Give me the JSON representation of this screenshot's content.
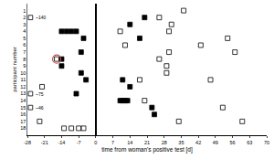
{
  "chart_data": {
    "type": "scatter",
    "x_label": "time from woman's positive test [d]",
    "y_label": "participant number",
    "xlim": [
      -28,
      70
    ],
    "xticks": [
      -28,
      -21,
      -14,
      -7,
      0,
      7,
      14,
      21,
      28,
      35,
      42,
      49,
      56,
      63,
      70
    ],
    "ylim": [
      19,
      0
    ],
    "yticks": [
      1,
      2,
      3,
      4,
      5,
      6,
      7,
      8,
      9,
      10,
      11,
      12,
      13,
      14,
      15,
      16,
      17,
      18
    ],
    "grid": false,
    "series": [
      {
        "marker": "square",
        "color": "#000000",
        "x": [
          20,
          14,
          -14,
          -12,
          -10,
          -8,
          -5,
          18,
          -6,
          -14,
          -14,
          -6,
          -4,
          11,
          14,
          -8,
          10,
          11,
          12,
          13,
          23,
          24
        ],
        "y": [
          2,
          3,
          4,
          4,
          4,
          4,
          5,
          5,
          7,
          8,
          9,
          10,
          11,
          11,
          12,
          13,
          14,
          14,
          14,
          14,
          15,
          16
        ]
      },
      {
        "marker": "square-open",
        "color": "#000000",
        "x": [
          36,
          26,
          31,
          10,
          30,
          54,
          12,
          43,
          30,
          57,
          -16,
          26,
          29,
          29,
          18,
          47,
          -22,
          20,
          52,
          -23,
          34,
          60,
          -13,
          -10,
          -7,
          -5
        ],
        "y": [
          1,
          2,
          3,
          4,
          4,
          5,
          6,
          6,
          7,
          7,
          8,
          8,
          9,
          10,
          11,
          11,
          12,
          14,
          15,
          17,
          17,
          17,
          18,
          18,
          18,
          18
        ]
      },
      {
        "marker": "circle-open",
        "color": "#c0504d",
        "x": [
          -16
        ],
        "y": [
          8
        ]
      }
    ],
    "annotations": [
      {
        "y": 2,
        "text": "~140"
      },
      {
        "y": 13,
        "text": "~75"
      },
      {
        "y": 15,
        "text": "~46"
      }
    ]
  }
}
